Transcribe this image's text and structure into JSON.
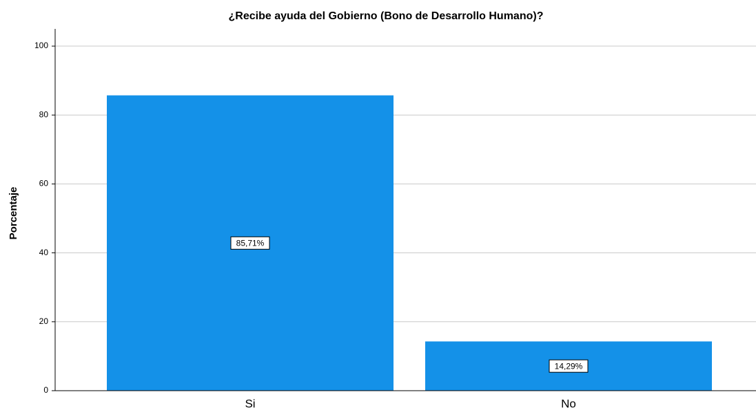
{
  "chart_data": {
    "type": "bar",
    "title": "¿Recibe ayuda del Gobierno (Bono de Desarrollo Humano)?",
    "y_label": "Porcentaje",
    "categories": [
      "Si",
      "No"
    ],
    "values": [
      85.71,
      14.29
    ],
    "value_labels": [
      "85,71%",
      "14,29%"
    ],
    "color": "#1491e8",
    "ylim": [
      0,
      105
    ],
    "yticks": [
      0,
      20,
      40,
      60,
      80,
      100
    ],
    "grid": true
  }
}
